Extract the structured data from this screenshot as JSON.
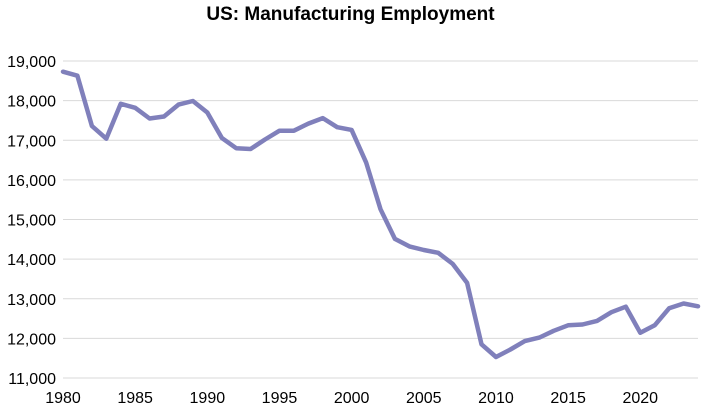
{
  "chart_data": {
    "type": "line",
    "title": "US: Manufacturing Employment",
    "xlabel": "",
    "ylabel": "",
    "xlim": [
      1980,
      2024
    ],
    "ylim": [
      11000,
      19000
    ],
    "y_ticks": [
      11000,
      12000,
      13000,
      14000,
      15000,
      16000,
      17000,
      18000,
      19000
    ],
    "y_tick_labels": [
      "11,000",
      "12,000",
      "13,000",
      "14,000",
      "15,000",
      "16,000",
      "17,000",
      "18,000",
      "19,000"
    ],
    "x_ticks": [
      1980,
      1985,
      1990,
      1995,
      2000,
      2005,
      2010,
      2015,
      2020
    ],
    "x_tick_labels": [
      "1980",
      "1985",
      "1990",
      "1995",
      "2000",
      "2005",
      "2010",
      "2015",
      "2020"
    ],
    "grid": true,
    "series": [
      {
        "name": "US Manufacturing Employment",
        "color": "#8080bb",
        "x": [
          1980,
          1981,
          1982,
          1983,
          1984,
          1985,
          1986,
          1987,
          1988,
          1989,
          1990,
          1991,
          1992,
          1993,
          1994,
          1995,
          1996,
          1997,
          1998,
          1999,
          2000,
          2001,
          2002,
          2003,
          2004,
          2005,
          2006,
          2007,
          2008,
          2009,
          2010,
          2011,
          2012,
          2013,
          2014,
          2015,
          2016,
          2017,
          2018,
          2019,
          2020,
          2021,
          2022,
          2023,
          2024
        ],
        "values": [
          18730,
          18630,
          17360,
          17040,
          17920,
          17820,
          17550,
          17600,
          17900,
          17990,
          17700,
          17060,
          16800,
          16780,
          17020,
          17240,
          17240,
          17420,
          17560,
          17330,
          17260,
          16440,
          15260,
          14510,
          14320,
          14230,
          14160,
          13880,
          13400,
          11850,
          11530,
          11720,
          11930,
          12020,
          12190,
          12330,
          12350,
          12440,
          12660,
          12800,
          12140,
          12330,
          12760,
          12880,
          12810
        ]
      }
    ]
  }
}
